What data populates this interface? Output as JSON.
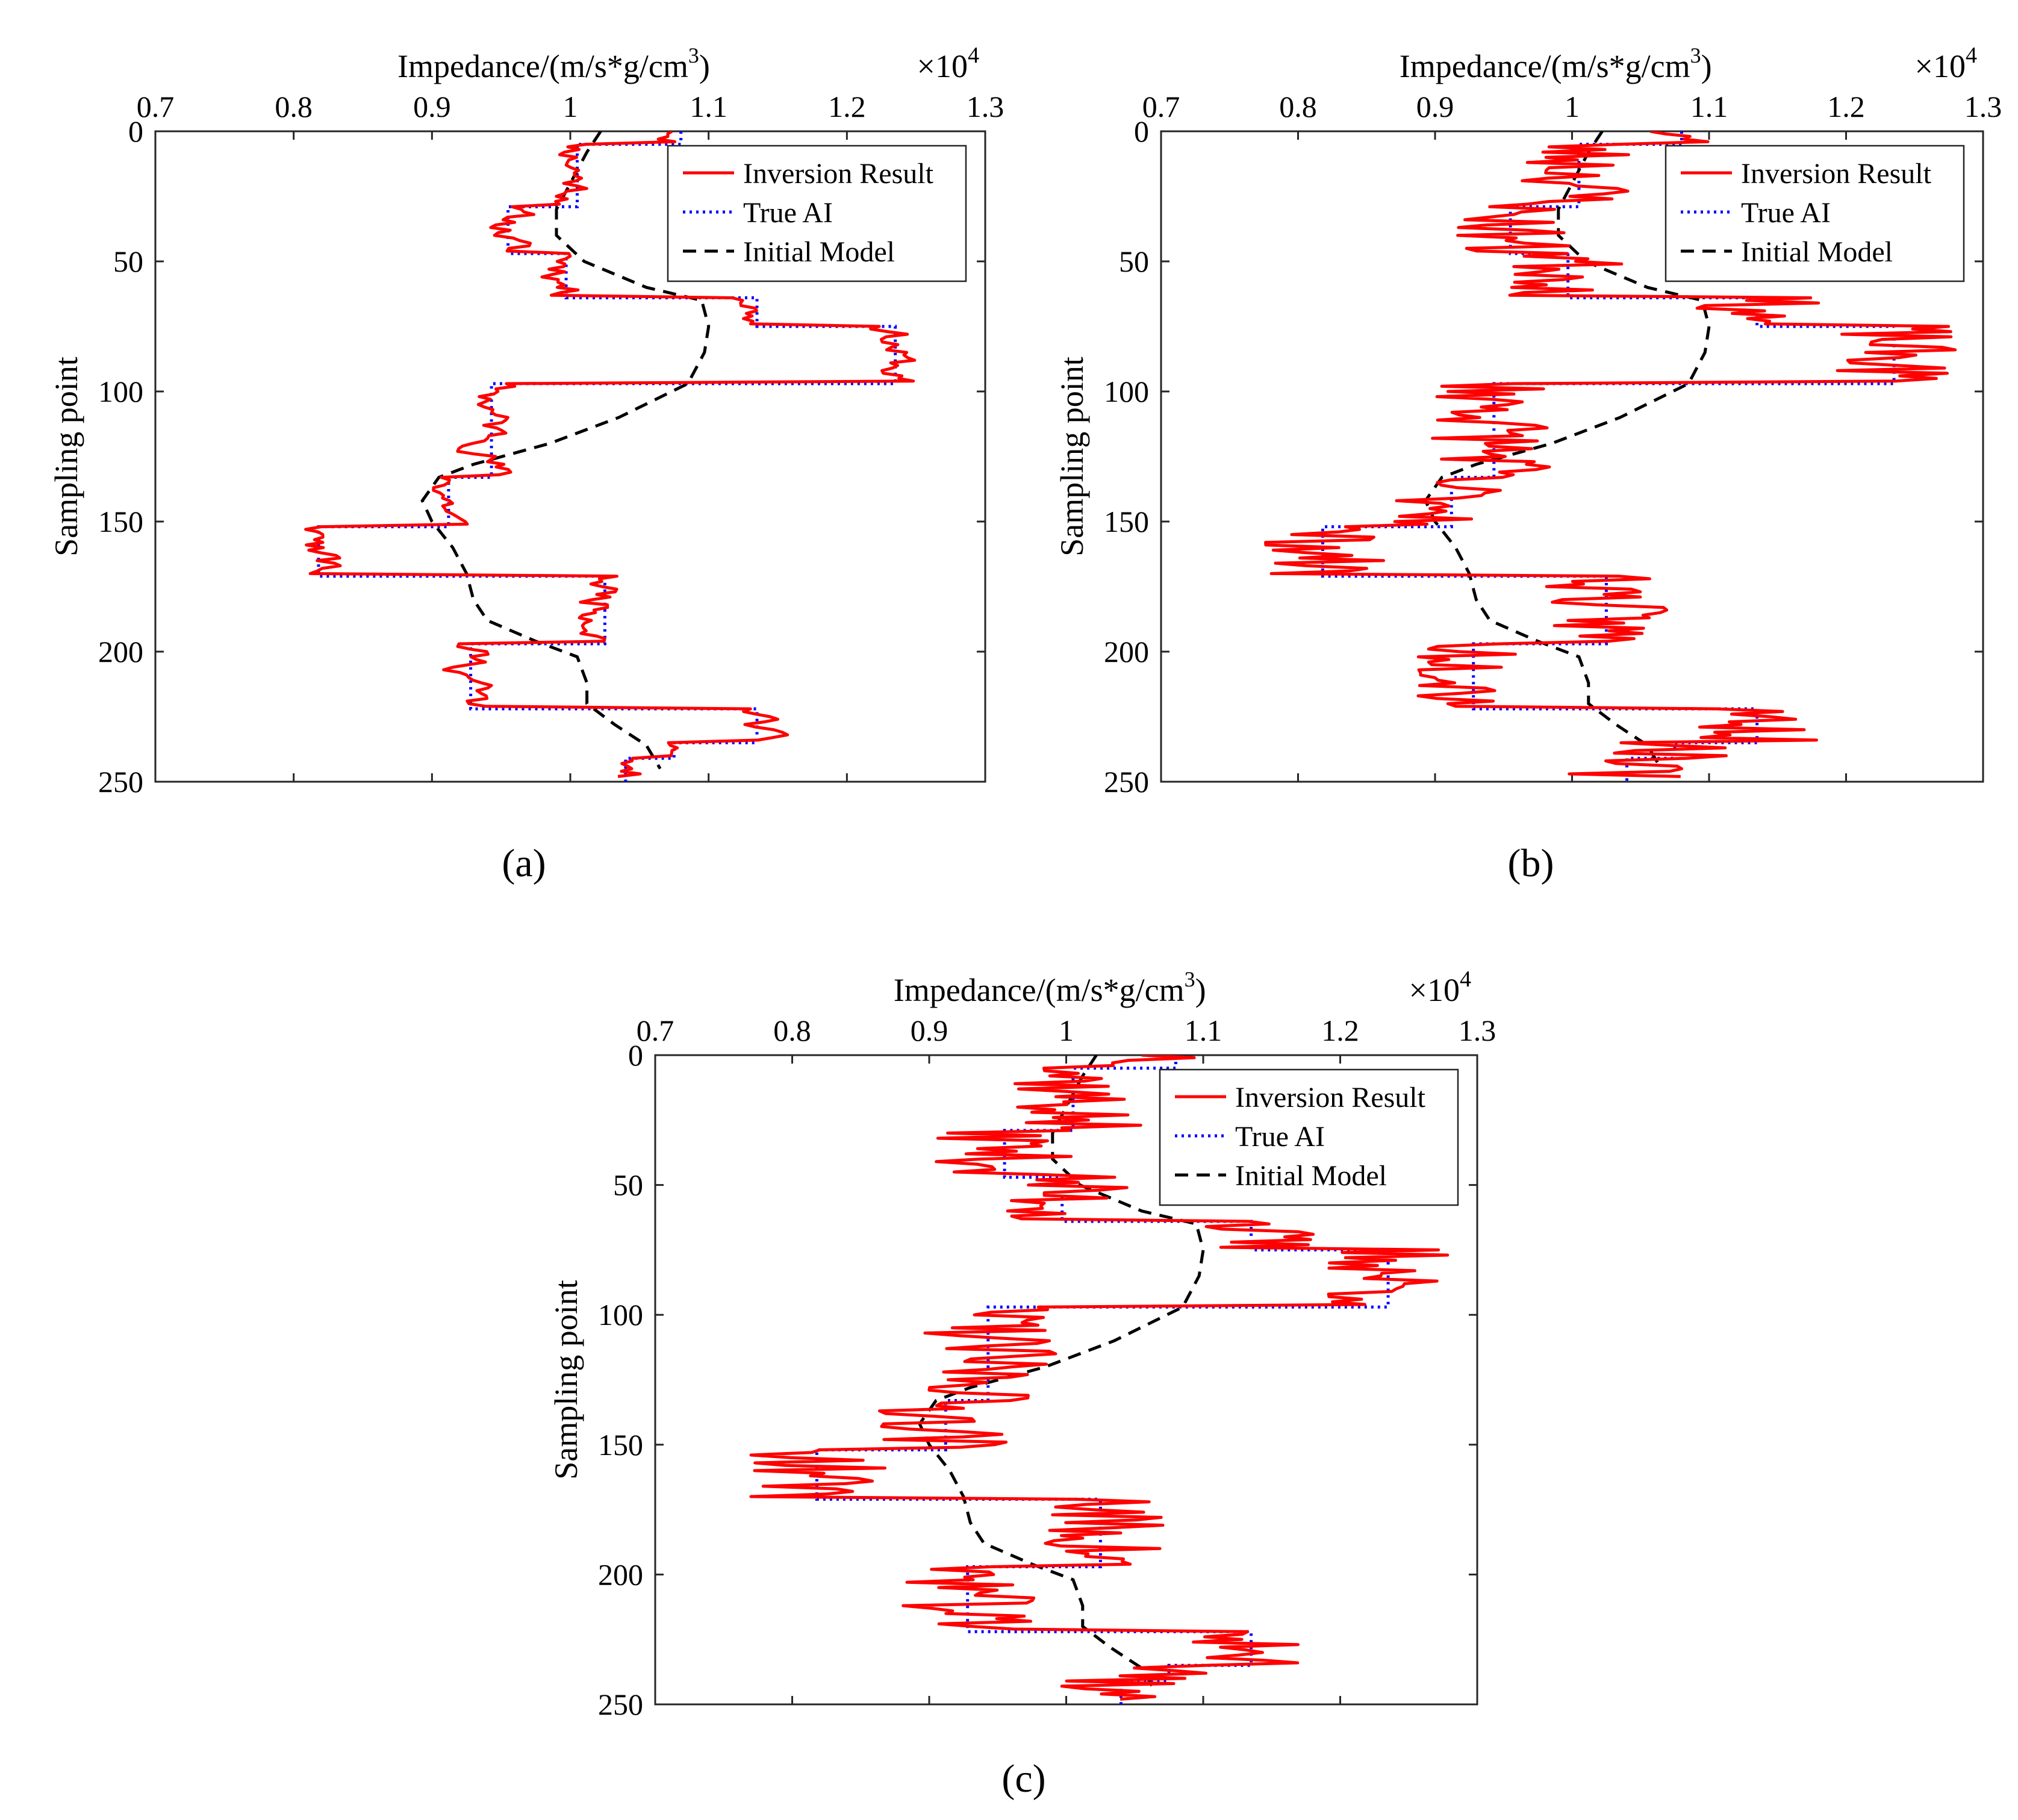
{
  "figure": {
    "colors": {
      "inversion": "#ff0000",
      "true_ai": "#0000ff",
      "initial": "#000000",
      "axis": "#262626"
    }
  },
  "chart_data": [
    {
      "panel": "(a)",
      "type": "line",
      "xlabel": "Impedance/(m/s*g/cm",
      "xlabel_sup": "3",
      "xlabel_close": ")",
      "x_exponent": "×10",
      "x_exponent_power": "4",
      "ylabel": "Sampling point",
      "xlim": [
        0.7,
        1.3
      ],
      "ylim": [
        0,
        250
      ],
      "xticks": [
        "0.7",
        "0.8",
        "0.9",
        "1",
        "1.1",
        "1.2",
        "1.3"
      ],
      "yticks": [
        "0",
        "50",
        "100",
        "150",
        "200",
        "250"
      ],
      "legend": [
        "Inversion Result",
        "True AI",
        "Initial Model"
      ],
      "legend_location": "top-right",
      "noise": 0.018,
      "seed": 11
    },
    {
      "panel": "(b)",
      "type": "line",
      "xlabel": "Impedance/(m/s*g/cm",
      "xlabel_sup": "3",
      "xlabel_close": ")",
      "x_exponent": "×10",
      "x_exponent_power": "4",
      "ylabel": "Sampling point",
      "xlim": [
        0.7,
        1.3
      ],
      "ylim": [
        0,
        250
      ],
      "xticks": [
        "0.7",
        "0.8",
        "0.9",
        "1",
        "1.1",
        "1.2",
        "1.3"
      ],
      "yticks": [
        "0",
        "50",
        "100",
        "150",
        "200",
        "250"
      ],
      "legend": [
        "Inversion Result",
        "True AI",
        "Initial Model"
      ],
      "legend_location": "top-right",
      "noise": 0.045,
      "seed": 23
    },
    {
      "panel": "(c)",
      "type": "line",
      "xlabel": "Impedance/(m/s*g/cm",
      "xlabel_sup": "3",
      "xlabel_close": ")",
      "x_exponent": "×10",
      "x_exponent_power": "4",
      "ylabel": "Sampling point",
      "xlim": [
        0.7,
        1.3
      ],
      "ylim": [
        0,
        250
      ],
      "xticks": [
        "0.7",
        "0.8",
        "0.9",
        "1",
        "1.1",
        "1.2",
        "1.3"
      ],
      "yticks": [
        "0",
        "50",
        "100",
        "150",
        "200",
        "250"
      ],
      "legend": [
        "Inversion Result",
        "True AI",
        "Initial Model"
      ],
      "legend_location": "top-right",
      "noise": 0.05,
      "seed": 37
    }
  ],
  "series_data": {
    "true_ai_steps": [
      [
        0,
        1.08
      ],
      [
        5,
        1.08
      ],
      [
        5,
        1.005
      ],
      [
        29,
        1.005
      ],
      [
        29,
        0.955
      ],
      [
        47,
        0.955
      ],
      [
        47,
        0.997
      ],
      [
        64,
        0.997
      ],
      [
        64,
        1.135
      ],
      [
        75,
        1.135
      ],
      [
        75,
        1.235
      ],
      [
        97,
        1.235
      ],
      [
        97,
        0.943
      ],
      [
        117,
        0.943
      ],
      [
        117,
        0.943
      ],
      [
        133,
        0.943
      ],
      [
        133,
        0.912
      ],
      [
        152,
        0.912
      ],
      [
        152,
        0.818
      ],
      [
        171,
        0.818
      ],
      [
        171,
        1.025
      ],
      [
        197,
        1.025
      ],
      [
        197,
        0.928
      ],
      [
        222,
        0.928
      ],
      [
        222,
        1.135
      ],
      [
        235,
        1.135
      ],
      [
        235,
        1.075
      ],
      [
        241,
        1.075
      ],
      [
        241,
        1.04
      ],
      [
        250,
        1.04
      ]
    ],
    "initial_model": [
      [
        0,
        1.022
      ],
      [
        8,
        1.012
      ],
      [
        20,
        1.0
      ],
      [
        30,
        0.99
      ],
      [
        40,
        0.99
      ],
      [
        50,
        1.01
      ],
      [
        60,
        1.055
      ],
      [
        65,
        1.095
      ],
      [
        75,
        1.1
      ],
      [
        85,
        1.097
      ],
      [
        97,
        1.085
      ],
      [
        110,
        1.035
      ],
      [
        120,
        0.985
      ],
      [
        128,
        0.93
      ],
      [
        133,
        0.905
      ],
      [
        142,
        0.893
      ],
      [
        150,
        0.9
      ],
      [
        160,
        0.915
      ],
      [
        170,
        0.925
      ],
      [
        180,
        0.93
      ],
      [
        188,
        0.94
      ],
      [
        196,
        0.975
      ],
      [
        202,
        1.005
      ],
      [
        212,
        1.012
      ],
      [
        220,
        1.012
      ],
      [
        228,
        1.032
      ],
      [
        236,
        1.055
      ],
      [
        245,
        1.065
      ]
    ]
  },
  "captions": [
    "(a)",
    "(b)",
    "(c)"
  ]
}
